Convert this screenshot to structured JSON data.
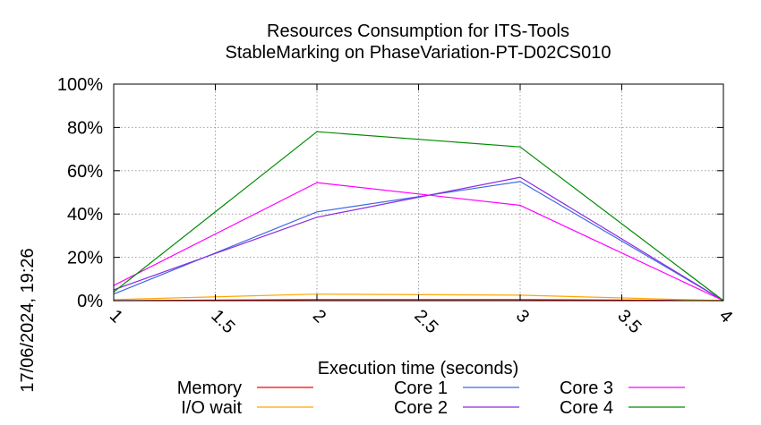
{
  "chart_data": {
    "type": "line",
    "title": "Resources Consumption for ITS-Tools",
    "subtitle": "StableMarking on PhaseVariation-PT-D02CS010",
    "xlabel": "Execution time (seconds)",
    "ylabel": "",
    "xlim": [
      1,
      4
    ],
    "ylim": [
      0,
      100
    ],
    "x_ticks": [
      "1",
      "1.5",
      "2",
      "2.5",
      "3",
      "3.5",
      "4"
    ],
    "y_ticks": [
      "0%",
      "20%",
      "40%",
      "60%",
      "80%",
      "100%"
    ],
    "grid": true,
    "legend_position": "bottom",
    "timestamp": "17/06/2024, 19:26",
    "series": [
      {
        "name": "Memory",
        "color": "#ff0000",
        "x": [
          1,
          2,
          3,
          4
        ],
        "values": [
          0,
          0.5,
          0.5,
          0
        ]
      },
      {
        "name": "I/O wait",
        "color": "#ffa500",
        "x": [
          1,
          2,
          3,
          4
        ],
        "values": [
          0.5,
          3,
          2.5,
          0
        ]
      },
      {
        "name": "Core 1",
        "color": "#4169e1",
        "x": [
          1,
          2,
          3,
          4
        ],
        "values": [
          3,
          41,
          55,
          0
        ]
      },
      {
        "name": "Core 2",
        "color": "#8a2be2",
        "x": [
          1,
          2,
          3,
          4
        ],
        "values": [
          5,
          38.5,
          57,
          0
        ]
      },
      {
        "name": "Core 3",
        "color": "#ff00ff",
        "x": [
          1,
          2,
          3,
          4
        ],
        "values": [
          7,
          54.5,
          44,
          0
        ]
      },
      {
        "name": "Core 4",
        "color": "#008b00",
        "x": [
          1,
          2,
          3,
          4
        ],
        "values": [
          4,
          78,
          71,
          0
        ]
      }
    ]
  }
}
